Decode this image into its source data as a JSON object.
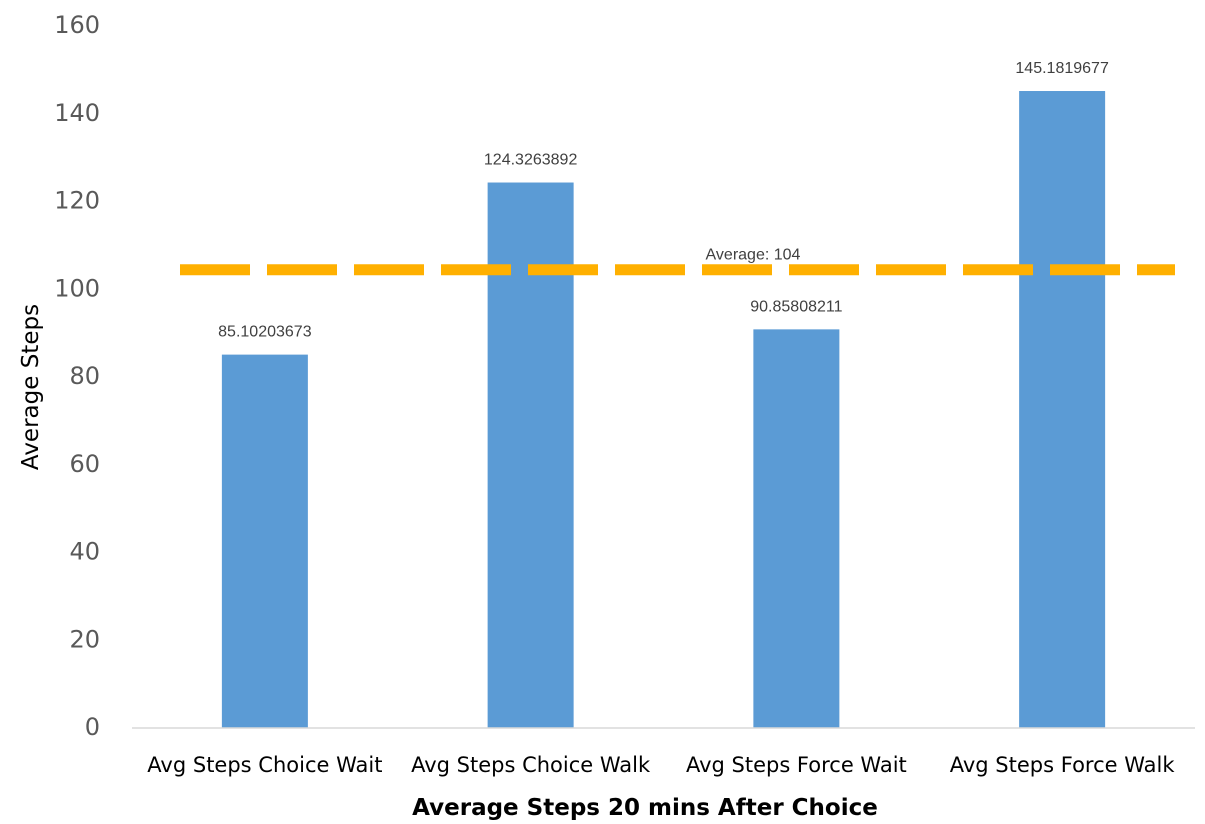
{
  "chart_data": {
    "type": "bar",
    "categories": [
      "Avg Steps Choice Wait",
      "Avg Steps Choice Walk",
      "Avg Steps Force Wait",
      "Avg Steps Force Walk"
    ],
    "values": [
      85.10203673,
      124.3263892,
      90.85808211,
      145.1819677
    ],
    "data_labels": [
      "85.10203673",
      "124.3263892",
      "90.85808211",
      "145.1819677"
    ],
    "title": "",
    "xlabel": "Average Steps 20 mins After Choice",
    "ylabel": "Average Steps",
    "ylim": [
      0,
      160
    ],
    "yticks": [
      0,
      20,
      40,
      60,
      80,
      100,
      120,
      140,
      160
    ],
    "grid": false,
    "legend": "none",
    "reference_line": {
      "value": 104,
      "label": "Average: 104",
      "style": "dashed"
    },
    "colors": {
      "bar": "#5b9bd5",
      "reference_line": "#ffb000",
      "axis": "#d9d9d9"
    }
  }
}
